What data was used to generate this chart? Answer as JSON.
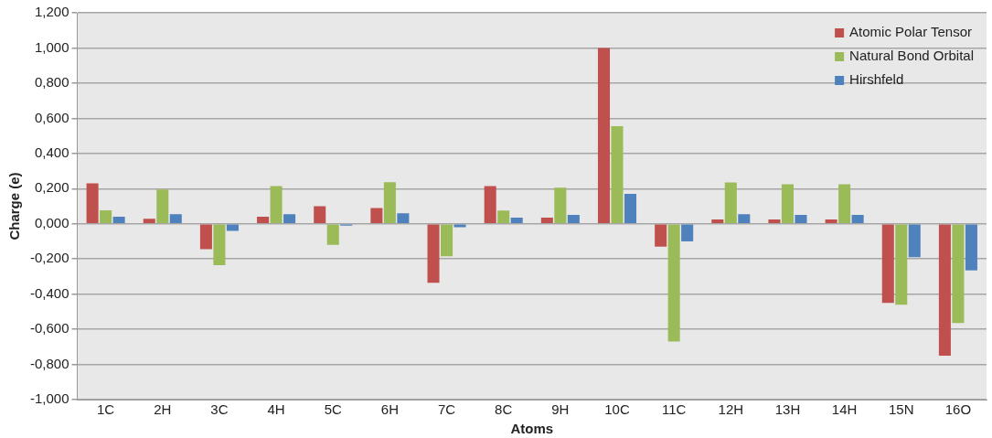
{
  "chart_data": {
    "type": "bar",
    "xlabel": "Atoms",
    "ylabel": "Charge (e)",
    "categories": [
      "1C",
      "2H",
      "3C",
      "4H",
      "5C",
      "6H",
      "7C",
      "8C",
      "9H",
      "10C",
      "11C",
      "12H",
      "13H",
      "14H",
      "15N",
      "16O"
    ],
    "series": [
      {
        "name": "Atomic Polar Tensor",
        "color": "#c0504d",
        "values": [
          0.23,
          0.028,
          -0.145,
          0.04,
          0.1,
          0.09,
          -0.335,
          0.215,
          0.035,
          1.0,
          -0.13,
          0.025,
          0.025,
          0.025,
          -0.45,
          -0.75
        ]
      },
      {
        "name": "Natural Bond Orbital",
        "color": "#9bbb59",
        "values": [
          0.077,
          0.195,
          -0.236,
          0.215,
          -0.12,
          0.236,
          -0.185,
          0.075,
          0.205,
          0.555,
          -0.67,
          0.235,
          0.225,
          0.225,
          -0.46,
          -0.565
        ]
      },
      {
        "name": "Hirshfeld",
        "color": "#4f81bd",
        "values": [
          0.04,
          0.055,
          -0.04,
          0.055,
          -0.01,
          0.06,
          -0.02,
          0.035,
          0.05,
          0.17,
          -0.1,
          0.055,
          0.05,
          0.05,
          -0.19,
          -0.265
        ]
      }
    ],
    "ylim": [
      -1.0,
      1.2
    ],
    "yticks": [
      {
        "value": -1.0,
        "label": "-1,000"
      },
      {
        "value": -0.8,
        "label": "-0,800"
      },
      {
        "value": -0.6,
        "label": "-0,600"
      },
      {
        "value": -0.4,
        "label": "-0,400"
      },
      {
        "value": -0.2,
        "label": "-0,200"
      },
      {
        "value": 0,
        "label": "0,000"
      },
      {
        "value": 0.2,
        "label": "0,200"
      },
      {
        "value": 0.4,
        "label": "0,400"
      },
      {
        "value": 0.6,
        "label": "0,600"
      },
      {
        "value": 0.8,
        "label": "0,800"
      },
      {
        "value": 1.0,
        "label": "1,000"
      },
      {
        "value": 1.2,
        "label": "1,200"
      }
    ],
    "grid": "y",
    "legend": "top right"
  }
}
